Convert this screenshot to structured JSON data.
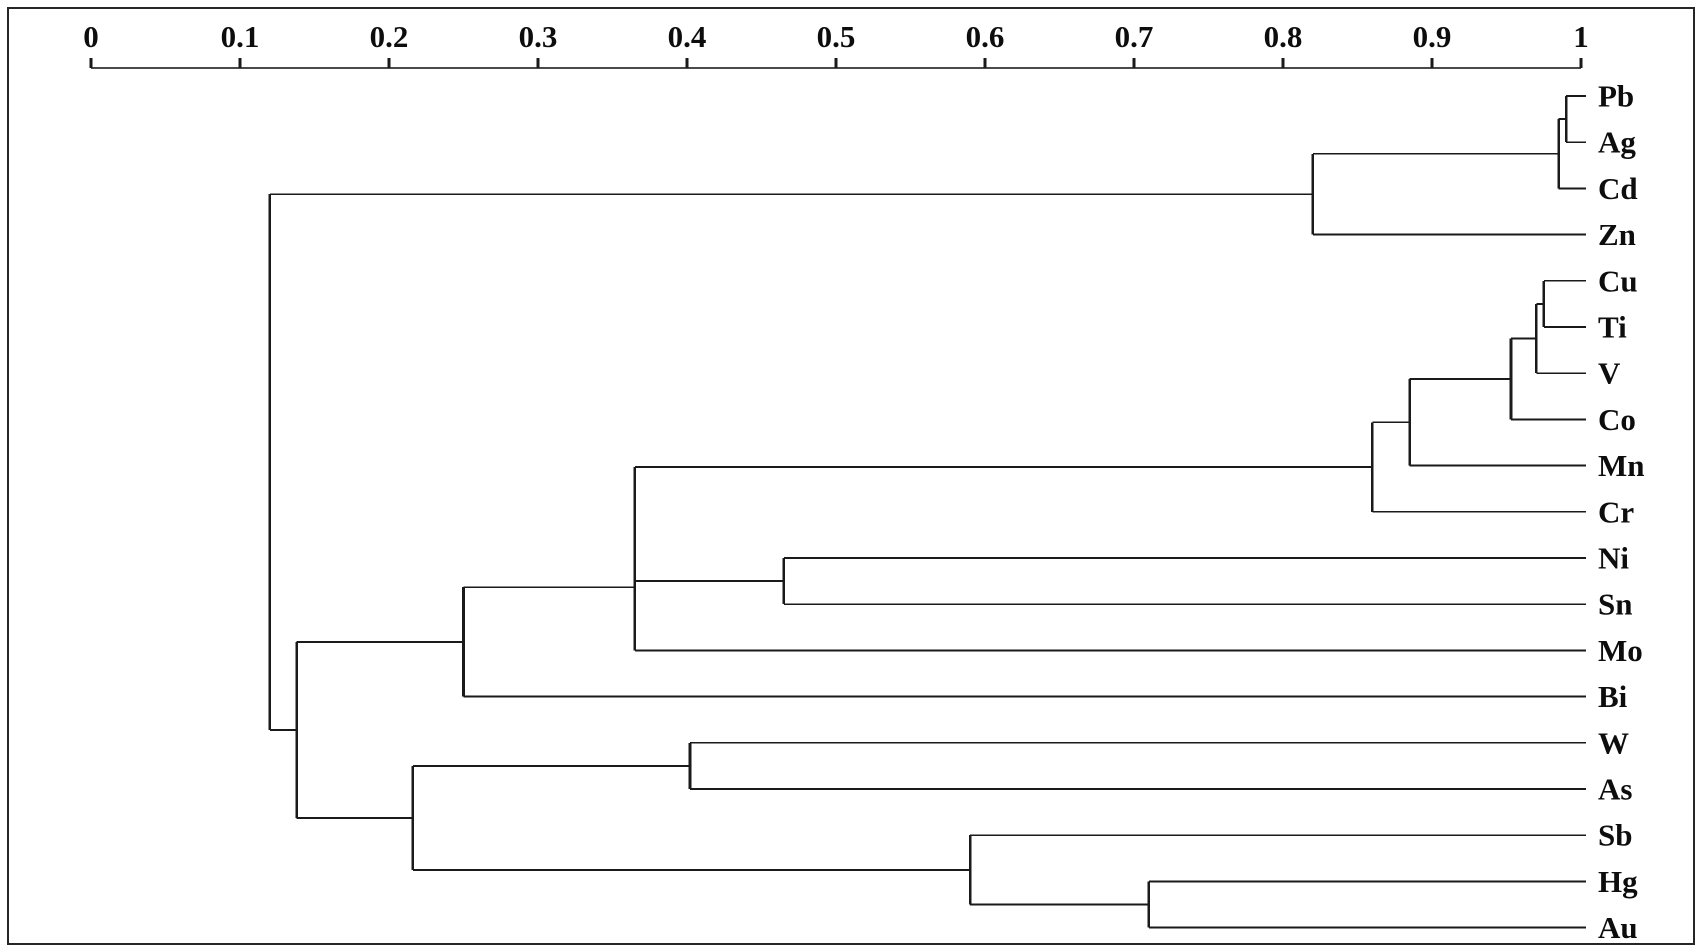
{
  "chart_data": {
    "type": "dendrogram",
    "title": "",
    "orientation": "horizontal-root-left-leaves-right",
    "axis": {
      "position": "top",
      "min": 0,
      "max": 1,
      "ticks": [
        {
          "value": 0,
          "label": "0"
        },
        {
          "value": 0.1,
          "label": "0.1"
        },
        {
          "value": 0.2,
          "label": "0.2"
        },
        {
          "value": 0.3,
          "label": "0.3"
        },
        {
          "value": 0.4,
          "label": "0.4"
        },
        {
          "value": 0.5,
          "label": "0.5"
        },
        {
          "value": 0.6,
          "label": "0.6"
        },
        {
          "value": 0.7,
          "label": "0.7"
        },
        {
          "value": 0.8,
          "label": "0.8"
        },
        {
          "value": 0.9,
          "label": "0.9"
        },
        {
          "value": 1,
          "label": "1"
        }
      ]
    },
    "leaves": [
      "Pb",
      "Ag",
      "Cd",
      "Zn",
      "Cu",
      "Ti",
      "V",
      "Co",
      "Mn",
      "Cr",
      "Ni",
      "Sn",
      "Mo",
      "Bi",
      "W",
      "As",
      "Sb",
      "Hg",
      "Au"
    ],
    "joins": [
      {
        "id": "J1",
        "a": "Pb",
        "b": "Ag",
        "similarity": 0.99
      },
      {
        "id": "J2",
        "a": "J1",
        "b": "Cd",
        "similarity": 0.985
      },
      {
        "id": "J3",
        "a": "J2",
        "b": "Zn",
        "similarity": 0.82
      },
      {
        "id": "J4",
        "a": "Cu",
        "b": "Ti",
        "similarity": 0.975
      },
      {
        "id": "J5",
        "a": "J4",
        "b": "V",
        "similarity": 0.97
      },
      {
        "id": "J6",
        "a": "J5",
        "b": "Co",
        "similarity": 0.953
      },
      {
        "id": "J7",
        "a": "J6",
        "b": "Mn",
        "similarity": 0.885
      },
      {
        "id": "J8",
        "a": "J7",
        "b": "Cr",
        "similarity": 0.86
      },
      {
        "id": "J9",
        "a": "Ni",
        "b": "Sn",
        "similarity": 0.465
      },
      {
        "id": "J10",
        "a": "J8",
        "b": "J9",
        "similarity": 0.365
      },
      {
        "id": "J11",
        "a": "J10",
        "b": "Mo",
        "similarity": 0.365
      },
      {
        "id": "J12",
        "a": "J11",
        "b": "Bi",
        "similarity": 0.25
      },
      {
        "id": "J13",
        "a": "W",
        "b": "As",
        "similarity": 0.402
      },
      {
        "id": "J14",
        "a": "Hg",
        "b": "Au",
        "similarity": 0.71
      },
      {
        "id": "J15",
        "a": "Sb",
        "b": "J14",
        "similarity": 0.59
      },
      {
        "id": "J16",
        "a": "J13",
        "b": "J15",
        "similarity": 0.216
      },
      {
        "id": "J17",
        "a": "J12",
        "b": "J16",
        "similarity": 0.138
      },
      {
        "id": "J18",
        "a": "J3",
        "b": "J17",
        "similarity": 0.12
      }
    ],
    "colors": {
      "line": "#1a1a1a",
      "axis_line": "#4a4a4a",
      "text": "#0d0d0d",
      "background": "#ffffff",
      "frame_border": "#262626"
    }
  }
}
